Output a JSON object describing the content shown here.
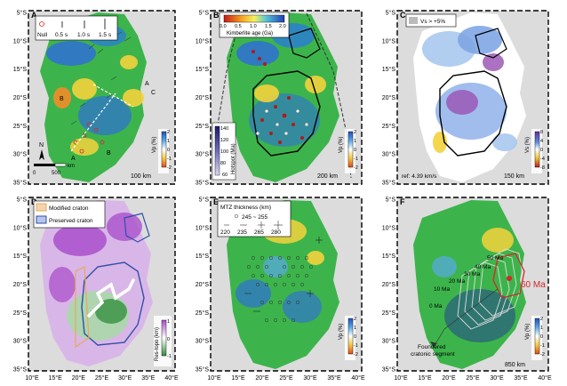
{
  "figure": {
    "x_ticks": [
      "10°E",
      "15°E",
      "20°E",
      "25°E",
      "30°E",
      "35°E",
      "40°E"
    ],
    "y_ticks": [
      "5°S",
      "10°S",
      "15°S",
      "20°S",
      "25°S",
      "30°S",
      "35°S"
    ]
  },
  "panels": [
    {
      "letter": "A",
      "depth": "100 km",
      "cbar_label": "Vp (%)",
      "cbar_ticks": [
        "2",
        "1",
        "0",
        "-1",
        "-2"
      ],
      "legend": {
        "null": "Null",
        "items": [
          "0.5 s",
          "1.0 s",
          "1.5 s"
        ]
      },
      "labels": {
        "A1": "A",
        "A2": "A",
        "B1": "B",
        "B2": "B",
        "C": "C"
      },
      "scale": {
        "north": "N",
        "km": "km",
        "zero": "0",
        "five_hundred": "500"
      }
    },
    {
      "letter": "B",
      "depth": "200 km",
      "cbar_label": "Vp (%)",
      "cbar_ticks": [
        "2",
        "1",
        "0",
        "-1",
        "-2"
      ],
      "kimberlite": {
        "title": "Kimberlite age (Ga)",
        "ticks": [
          "0.0",
          "0.5",
          "1.0",
          "1.5",
          "2.0"
        ]
      },
      "hotspot": {
        "title": "Hotspot (Ma)",
        "ticks": [
          "140",
          "120",
          "100",
          "80",
          "60"
        ]
      }
    },
    {
      "letter": "C",
      "depth": "150 km",
      "cbar_label": "Vs (%)",
      "cbar_ticks": [
        "8",
        "4",
        "0",
        "-4",
        "-8"
      ],
      "legend": "Vs > +5%",
      "ref": "ref: 4.39 km/s"
    },
    {
      "letter": "D",
      "cbar_label": "Res-topo (km)",
      "cbar_ticks": [
        "1",
        "0",
        "-1"
      ],
      "legend": [
        "Modified craton",
        "Preserved craton"
      ]
    },
    {
      "letter": "E",
      "cbar_label": "Vp (%)",
      "cbar_ticks": [
        "2",
        "1",
        "0",
        "-1",
        "-2"
      ],
      "legend": {
        "title": "MTZ thickness (km)",
        "row1": "245 ~ 255",
        "row2": [
          "220",
          "235",
          "265",
          "280"
        ]
      }
    },
    {
      "letter": "F",
      "depth": "850 km",
      "cbar_label": "Vp (%)",
      "cbar_ticks": [
        "2",
        "1",
        "0",
        "-1",
        "-2"
      ],
      "ages": [
        "50 Ma",
        "40 Ma",
        "30 Ma",
        "20 Ma",
        "10 Ma",
        "0 Ma"
      ],
      "big_age": "60 Ma",
      "annot": [
        "Foundered",
        "cratonic segment"
      ]
    }
  ],
  "colors": {
    "ocean": "#dcdcdc",
    "green": "#3cb44b",
    "blue": "#2f6fd6",
    "yellow": "#f3d23c",
    "orange": "#f28c28",
    "purple": "#9b59b6",
    "red": "#d62728"
  }
}
